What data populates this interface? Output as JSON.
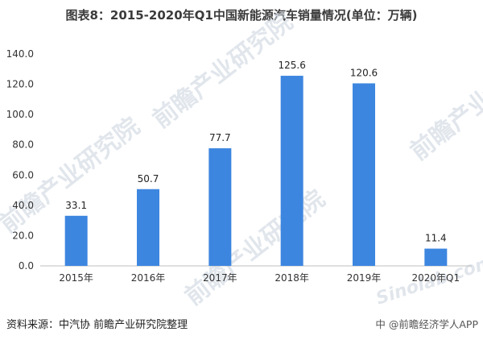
{
  "header": {
    "title": "图表8：2015-2020年Q1中国新能源汽车销量情况(单位：万辆)"
  },
  "chart_data": {
    "type": "bar",
    "categories": [
      "2015年",
      "2016年",
      "2017年",
      "2018年",
      "2019年",
      "2020年Q1"
    ],
    "values": [
      33.1,
      50.7,
      77.7,
      125.6,
      120.6,
      11.4
    ],
    "value_labels": [
      "33.1",
      "50.7",
      "77.7",
      "125.6",
      "120.6",
      "11.4"
    ],
    "yticks": [
      "0.0",
      "20.0",
      "40.0",
      "60.0",
      "80.0",
      "100.0",
      "120.0",
      "140.0"
    ],
    "ylim": [
      0,
      140
    ],
    "xlabel": "",
    "ylabel": "",
    "grid": false,
    "bar_color": "#3d86e0"
  },
  "footer": {
    "source": "资料来源：中汽协 前瞻产业研究院整理",
    "watermark": "中 @前瞻经济学人APP"
  },
  "watermarks": {
    "brand": "前瞻产业研究院",
    "site": "Sinolab.com"
  }
}
